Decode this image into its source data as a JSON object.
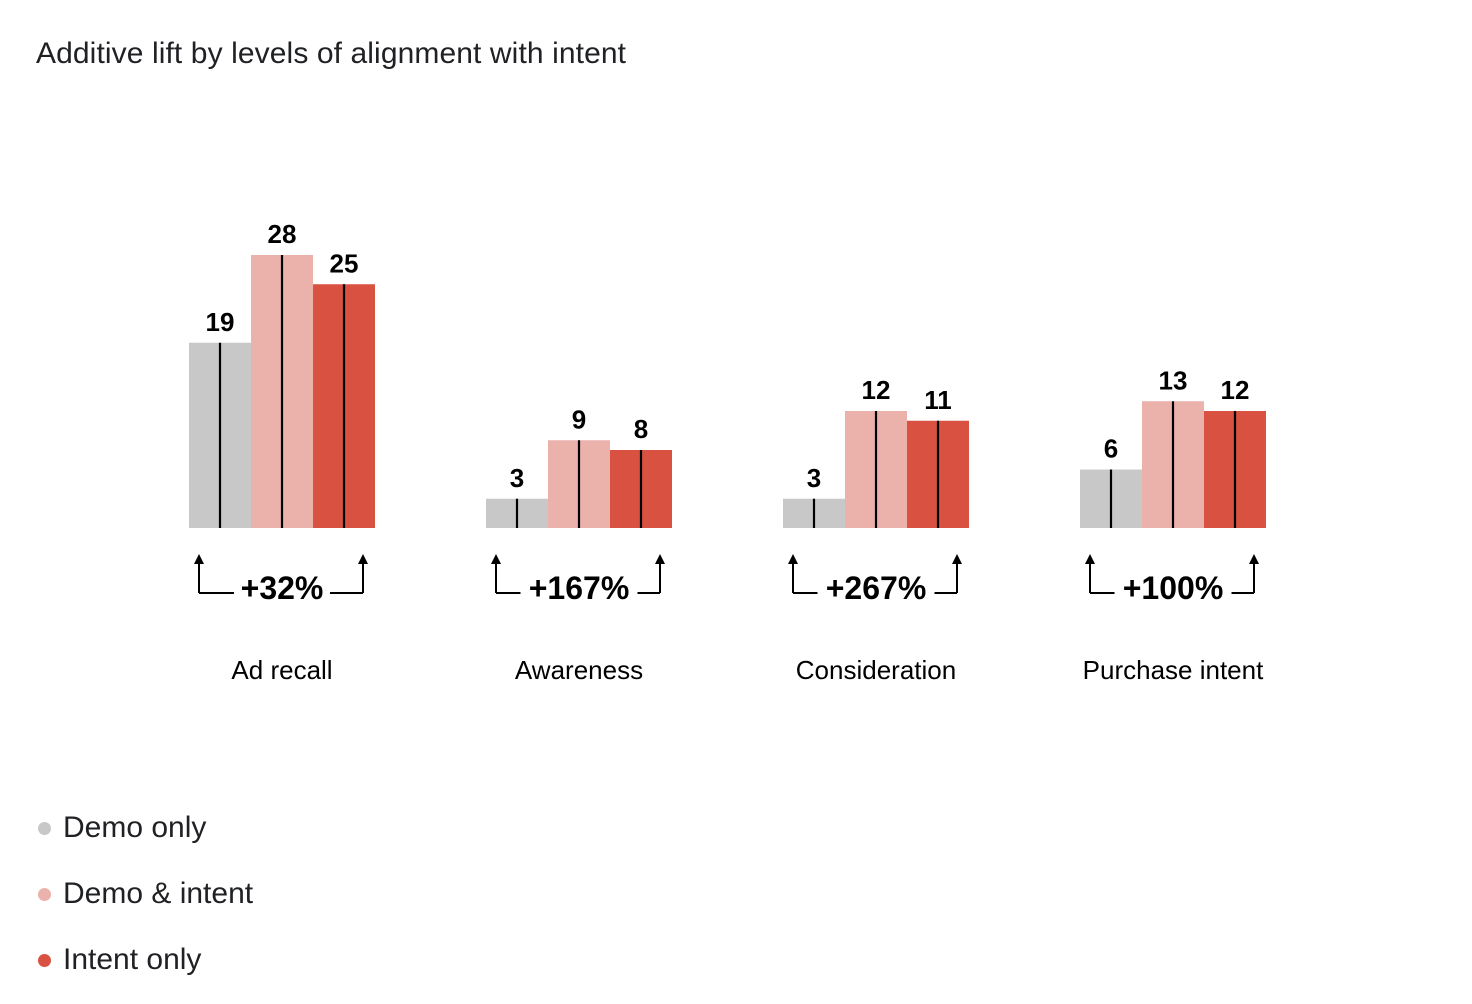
{
  "chart_data": {
    "type": "bar",
    "title": "Additive lift by levels of alignment with intent",
    "categories": [
      "Ad recall",
      "Awareness",
      "Consideration",
      "Purchase intent"
    ],
    "series": [
      {
        "name": "Demo only",
        "color": "#c8c8c8",
        "values": [
          19,
          3,
          3,
          6
        ]
      },
      {
        "name": "Demo & intent",
        "color": "#ebb1ab",
        "values": [
          28,
          9,
          12,
          13
        ]
      },
      {
        "name": "Intent only",
        "color": "#d95141",
        "values": [
          25,
          8,
          11,
          12
        ]
      }
    ],
    "lift_labels": [
      "+32%",
      "+167%",
      "+267%",
      "+100%"
    ],
    "xlabel": "",
    "ylabel": "",
    "ylim": [
      0,
      28
    ],
    "grid": false,
    "legend_position": "bottom-left"
  }
}
